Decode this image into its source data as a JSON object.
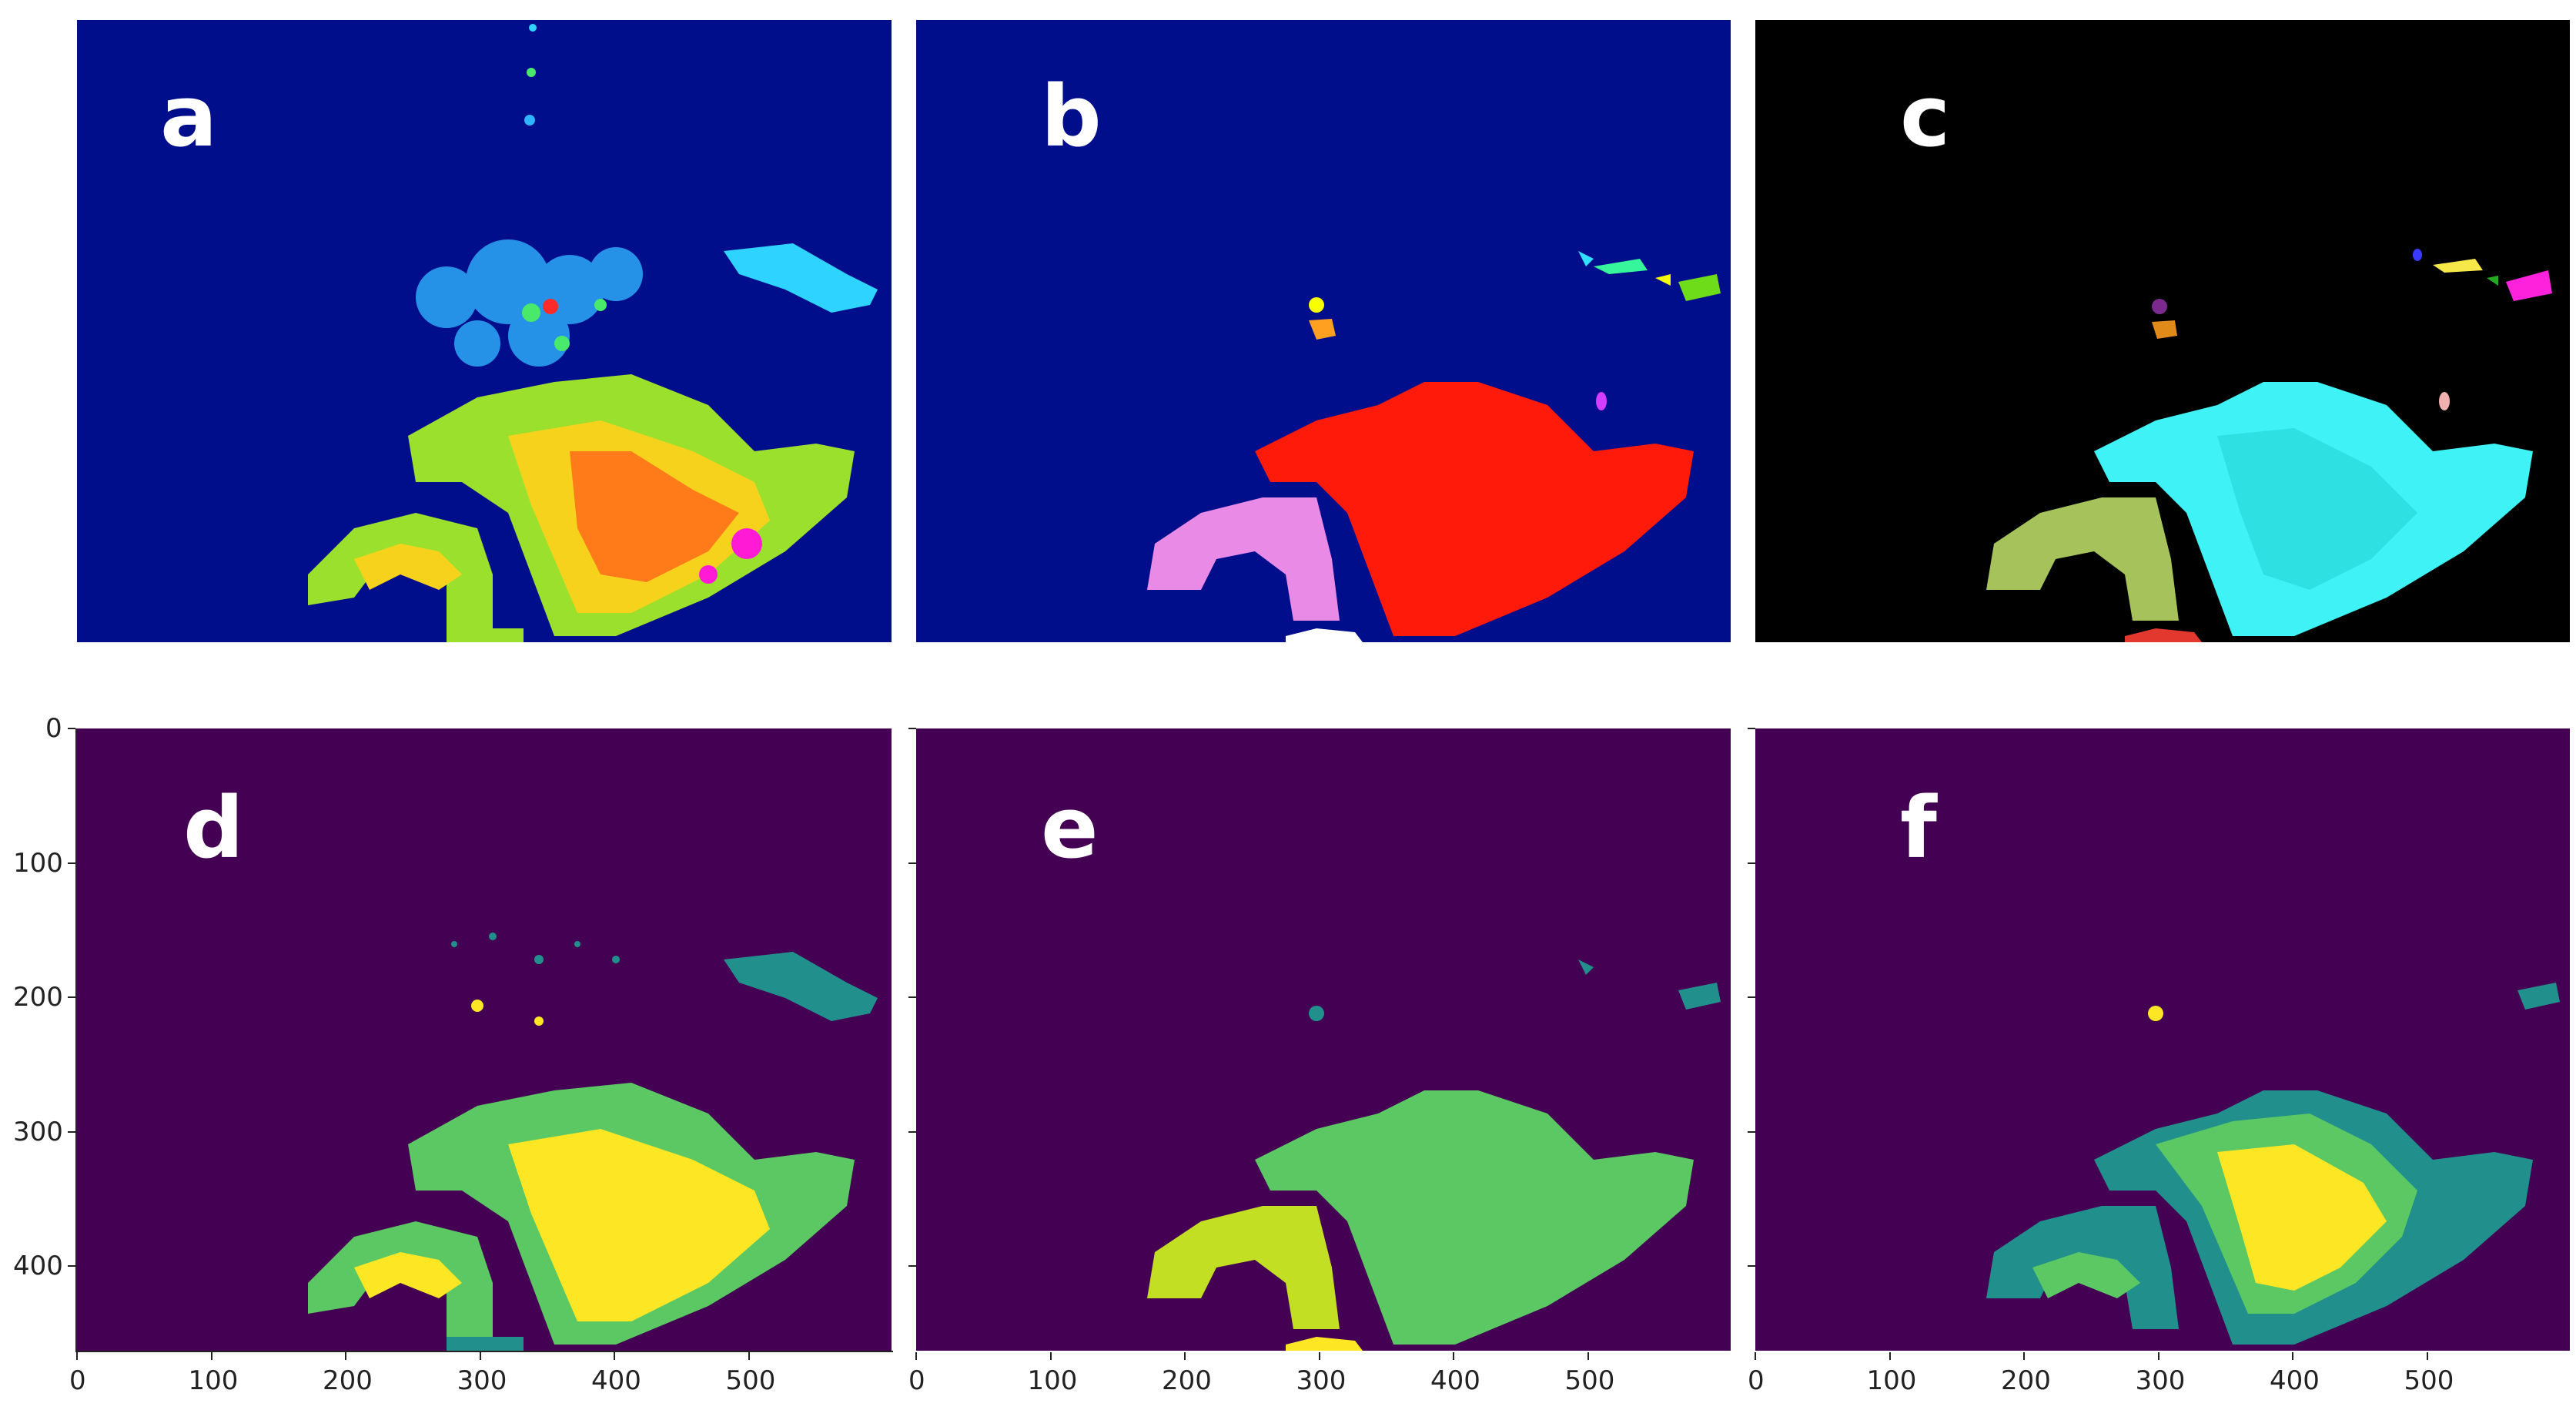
{
  "panels": [
    {
      "id": "a",
      "label": "a",
      "kind": "radar",
      "background": "#000e8c"
    },
    {
      "id": "b",
      "label": "b",
      "kind": "labels",
      "background": "#000e8c"
    },
    {
      "id": "c",
      "label": "c",
      "kind": "overlay",
      "background": "#000000"
    },
    {
      "id": "d",
      "label": "d",
      "kind": "viridis",
      "background": "#440154"
    },
    {
      "id": "e",
      "label": "e",
      "kind": "viridis",
      "background": "#440154"
    },
    {
      "id": "f",
      "label": "f",
      "kind": "viridis",
      "background": "#440154"
    }
  ],
  "axes": {
    "x_ticks": [
      "0",
      "100",
      "200",
      "300",
      "400",
      "500"
    ],
    "y_ticks": [
      "0",
      "100",
      "200",
      "300",
      "400"
    ]
  },
  "colors": {
    "radar_blue": "#000e8c",
    "red_region": "#ff1a0a",
    "pink_region": "#e98ae6",
    "cyan_region": "#3ef2f5",
    "olive_region": "#a5c25b",
    "viridis_purple": "#440154",
    "viridis_teal": "#21908c",
    "viridis_green": "#5cc863",
    "viridis_yellow": "#fde725"
  }
}
